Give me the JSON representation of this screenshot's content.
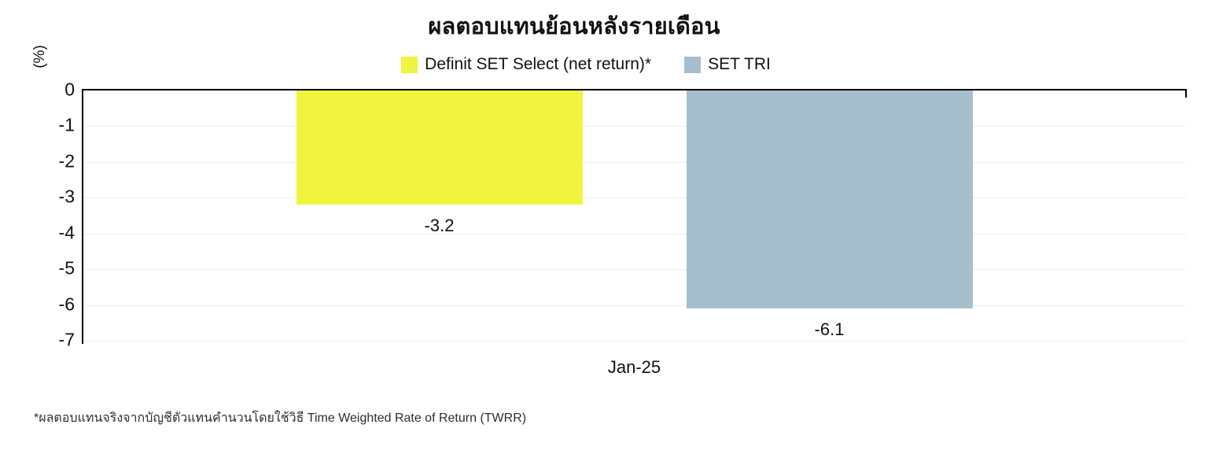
{
  "title": "ผลตอบแทนย้อนหลังรายเดือน",
  "footnote": "*ผลตอบแทนจริงจากบัญชีตัวแทนคำนวนโดยใช้วิธี Time Weighted Rate of Return (TWRR)",
  "chart_data": {
    "type": "bar",
    "title": "ผลตอบแทนย้อนหลังรายเดือน",
    "categories": [
      "Jan-25"
    ],
    "series": [
      {
        "name": "Definit SET Select (net return)*",
        "values": [
          -3.2
        ],
        "label": "-3.2",
        "color": "#F0F43E"
      },
      {
        "name": "SET TRI",
        "values": [
          -6.1
        ],
        "label": "-6.1",
        "color": "#A7BFCC"
      }
    ],
    "xlabel": "",
    "ylabel": "(%)",
    "ylim": [
      -7,
      0
    ],
    "yticks": [
      0,
      -1,
      -2,
      -3,
      -4,
      -5,
      -6,
      -7
    ],
    "grid": true,
    "legend_position": "top",
    "axis_color": "#000000",
    "gridline_color": "#ececec"
  }
}
